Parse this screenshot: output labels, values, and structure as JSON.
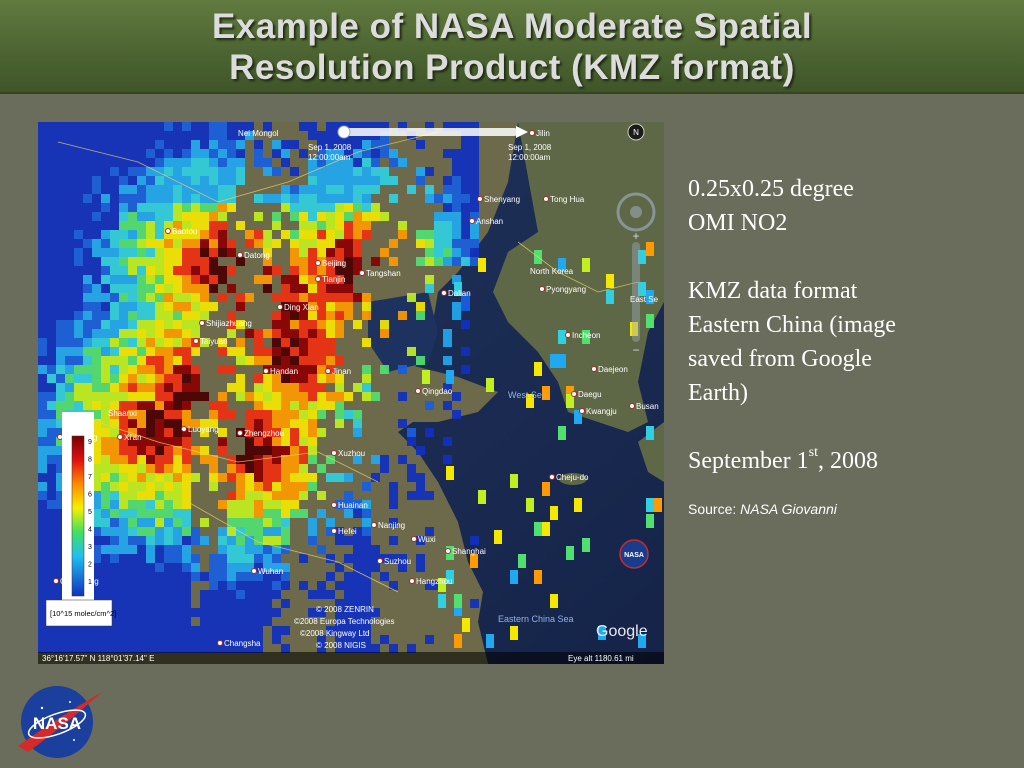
{
  "title": {
    "line1": "Example of NASA Moderate Spatial",
    "line2": "Resolution Product (KMZ format)"
  },
  "map": {
    "time_labels": [
      "Sep 1, 2008",
      "12:00:00am",
      "Sep 1, 2008",
      "12:00:00am"
    ],
    "cities": [
      {
        "name": "Nei Mongol"
      },
      {
        "name": "Jilin"
      },
      {
        "name": "Shenyang"
      },
      {
        "name": "Tong Hua"
      },
      {
        "name": "Anshan"
      },
      {
        "name": "Baotou"
      },
      {
        "name": "Datong"
      },
      {
        "name": "Beijing"
      },
      {
        "name": "Tianjin"
      },
      {
        "name": "Tangshan"
      },
      {
        "name": "Dalian"
      },
      {
        "name": "North Korea"
      },
      {
        "name": "Pyongyang"
      },
      {
        "name": "East Se"
      },
      {
        "name": "Shijiazhuang"
      },
      {
        "name": "Ding Xian"
      },
      {
        "name": "Taiyuan"
      },
      {
        "name": "Incheon"
      },
      {
        "name": "Handan"
      },
      {
        "name": "Jinan"
      },
      {
        "name": "Daejeon"
      },
      {
        "name": "Qingdao"
      },
      {
        "name": "Daegu"
      },
      {
        "name": "Kwangju"
      },
      {
        "name": "Busan"
      },
      {
        "name": "Shaanxi"
      },
      {
        "name": "Xianyang"
      },
      {
        "name": "Xi'an"
      },
      {
        "name": "Luoyang"
      },
      {
        "name": "Zhengzhou"
      },
      {
        "name": "Xuzhou"
      },
      {
        "name": "Cheju-do"
      },
      {
        "name": "Huainan"
      },
      {
        "name": "Hefei"
      },
      {
        "name": "Nanjing"
      },
      {
        "name": "Wuxi"
      },
      {
        "name": "Shanghai"
      },
      {
        "name": "Suzhou"
      },
      {
        "name": "Hangzhou"
      },
      {
        "name": "Wuhan"
      },
      {
        "name": "Chongqing"
      },
      {
        "name": "Changsha"
      }
    ],
    "seas": [
      "West Sea",
      "Eastern China Sea"
    ],
    "legend_ticks": [
      "9",
      "8",
      "7",
      "6",
      "5",
      "4",
      "3",
      "2",
      "1"
    ],
    "legend_unit": "[10^15 molec/cm^2]",
    "copyright": [
      "© 2008 ZENRIN",
      "©2008 Europa Technologies",
      "©2008 Kingway Ltd",
      "© 2008 NIGIS"
    ],
    "coords": "36°16'17.57\" N   118°01'37.14\" E",
    "eye_alt": "Eye alt  1180.61 mi",
    "google": "Google",
    "nasa_badge": "NASA"
  },
  "side": {
    "p1": [
      "0.25x0.25 degree",
      "OMI NO2"
    ],
    "p2": [
      "KMZ data format",
      "Eastern China (image",
      "saved from Google",
      "Earth)"
    ],
    "date_prefix": "September 1",
    "date_sup": "st",
    "date_suffix": ", 2008",
    "source_label": "Source: ",
    "source_value": "NASA Giovanni"
  },
  "logo": {
    "text": "NASA"
  },
  "colors": {
    "title_text": "#dcdcdc",
    "background": "#6a6c5c",
    "title_bar": "#4d6532"
  }
}
